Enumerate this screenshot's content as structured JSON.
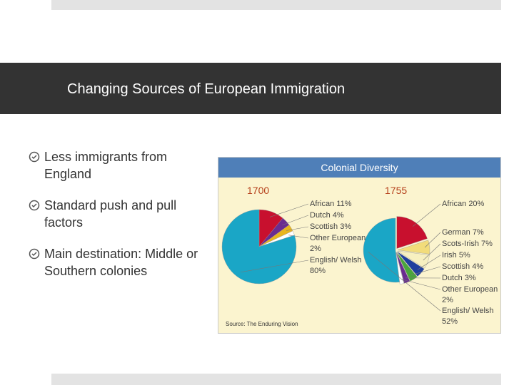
{
  "slide": {
    "title": "Changing Sources of European Immigration",
    "bullets": [
      "Less immigrants from England",
      "Standard push and pull factors",
      "Main destination: Middle or Southern colonies"
    ]
  },
  "figure": {
    "title": "Colonial Diversity",
    "source": "Source: The Enduring Vision"
  },
  "chart_data": [
    {
      "type": "pie",
      "title": "1700",
      "categories": [
        "African",
        "Dutch",
        "Scottish",
        "Other European",
        "English/ Welsh"
      ],
      "values": [
        11,
        4,
        3,
        2,
        80
      ],
      "value_labels": [
        "11%",
        "4%",
        "3%",
        "2%",
        "80%"
      ],
      "colors": [
        "#c8102e",
        "#6a2c91",
        "#e8b51f",
        "#ffffff",
        "#1aa6c6"
      ]
    },
    {
      "type": "pie",
      "title": "1755",
      "categories": [
        "African",
        "German",
        "Scots-Irish",
        "Irish",
        "Scottish",
        "Dutch",
        "Other European",
        "English/ Welsh"
      ],
      "values": [
        20,
        7,
        7,
        5,
        4,
        3,
        2,
        52
      ],
      "value_labels": [
        "20%",
        "7%",
        "7%",
        "5%",
        "4%",
        "3%",
        "2%",
        "52%"
      ],
      "colors": [
        "#c8102e",
        "#f2dc7a",
        "#f7f0c0",
        "#1f3f9e",
        "#4aa63c",
        "#6a2c91",
        "#ffffff",
        "#1aa6c6"
      ]
    }
  ]
}
